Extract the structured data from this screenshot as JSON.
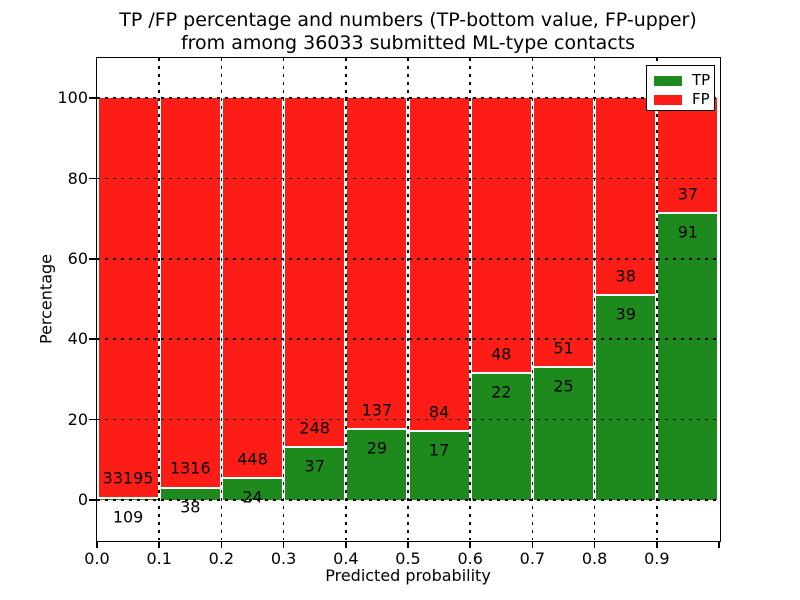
{
  "title": {
    "line1": "TP /FP percentage and numbers (TP-bottom value, FP-upper)",
    "line2": "from among 36033 submitted ML-type contacts"
  },
  "axes": {
    "xlabel": "Predicted probability",
    "ylabel": "Percentage",
    "x_tick_labels": [
      "0.0",
      "0.1",
      "0.2",
      "0.3",
      "0.4",
      "0.5",
      "0.6",
      "0.7",
      "0.8",
      "0.9"
    ],
    "y_tick_labels": [
      "0",
      "20",
      "40",
      "60",
      "80",
      "100"
    ]
  },
  "legend": {
    "entries": [
      {
        "label": "TP",
        "color": "#1E8A1E"
      },
      {
        "label": "FP",
        "color": "#FC1D16"
      }
    ]
  },
  "colors": {
    "tp": "#1E8A1E",
    "fp": "#FC1D16",
    "background": "#FFFFFF",
    "text": "#000000",
    "grid": "#000000"
  },
  "chart_data": {
    "type": "bar",
    "subtype": "stacked-percentage",
    "title": "TP /FP percentage and numbers (TP-bottom value, FP-upper) from among 36033 submitted ML-type contacts",
    "xlabel": "Predicted probability",
    "ylabel": "Percentage",
    "xlim": [
      0.0,
      1.0
    ],
    "ylim": [
      -10,
      110
    ],
    "grid": true,
    "legend_position": "upper right",
    "total_contacts": 36033,
    "bin_width": 0.1,
    "bin_starts": [
      0.0,
      0.1,
      0.2,
      0.3,
      0.4,
      0.5,
      0.6,
      0.7,
      0.8,
      0.9
    ],
    "series": [
      {
        "name": "TP",
        "color": "#1E8A1E",
        "counts": [
          109,
          38,
          24,
          37,
          29,
          17,
          22,
          25,
          39,
          91
        ]
      },
      {
        "name": "FP",
        "color": "#FC1D16",
        "counts": [
          33195,
          1316,
          448,
          248,
          137,
          84,
          48,
          51,
          38,
          37
        ]
      }
    ],
    "tp_percent_of_bin": [
      0.33,
      2.81,
      5.08,
      12.98,
      17.47,
      16.83,
      31.43,
      32.89,
      50.65,
      71.09
    ],
    "y_gridlines": [
      0,
      20,
      40,
      60,
      80,
      100
    ],
    "x_gridlines": [
      0.1,
      0.2,
      0.3,
      0.4,
      0.5,
      0.6,
      0.7,
      0.8,
      0.9
    ]
  }
}
